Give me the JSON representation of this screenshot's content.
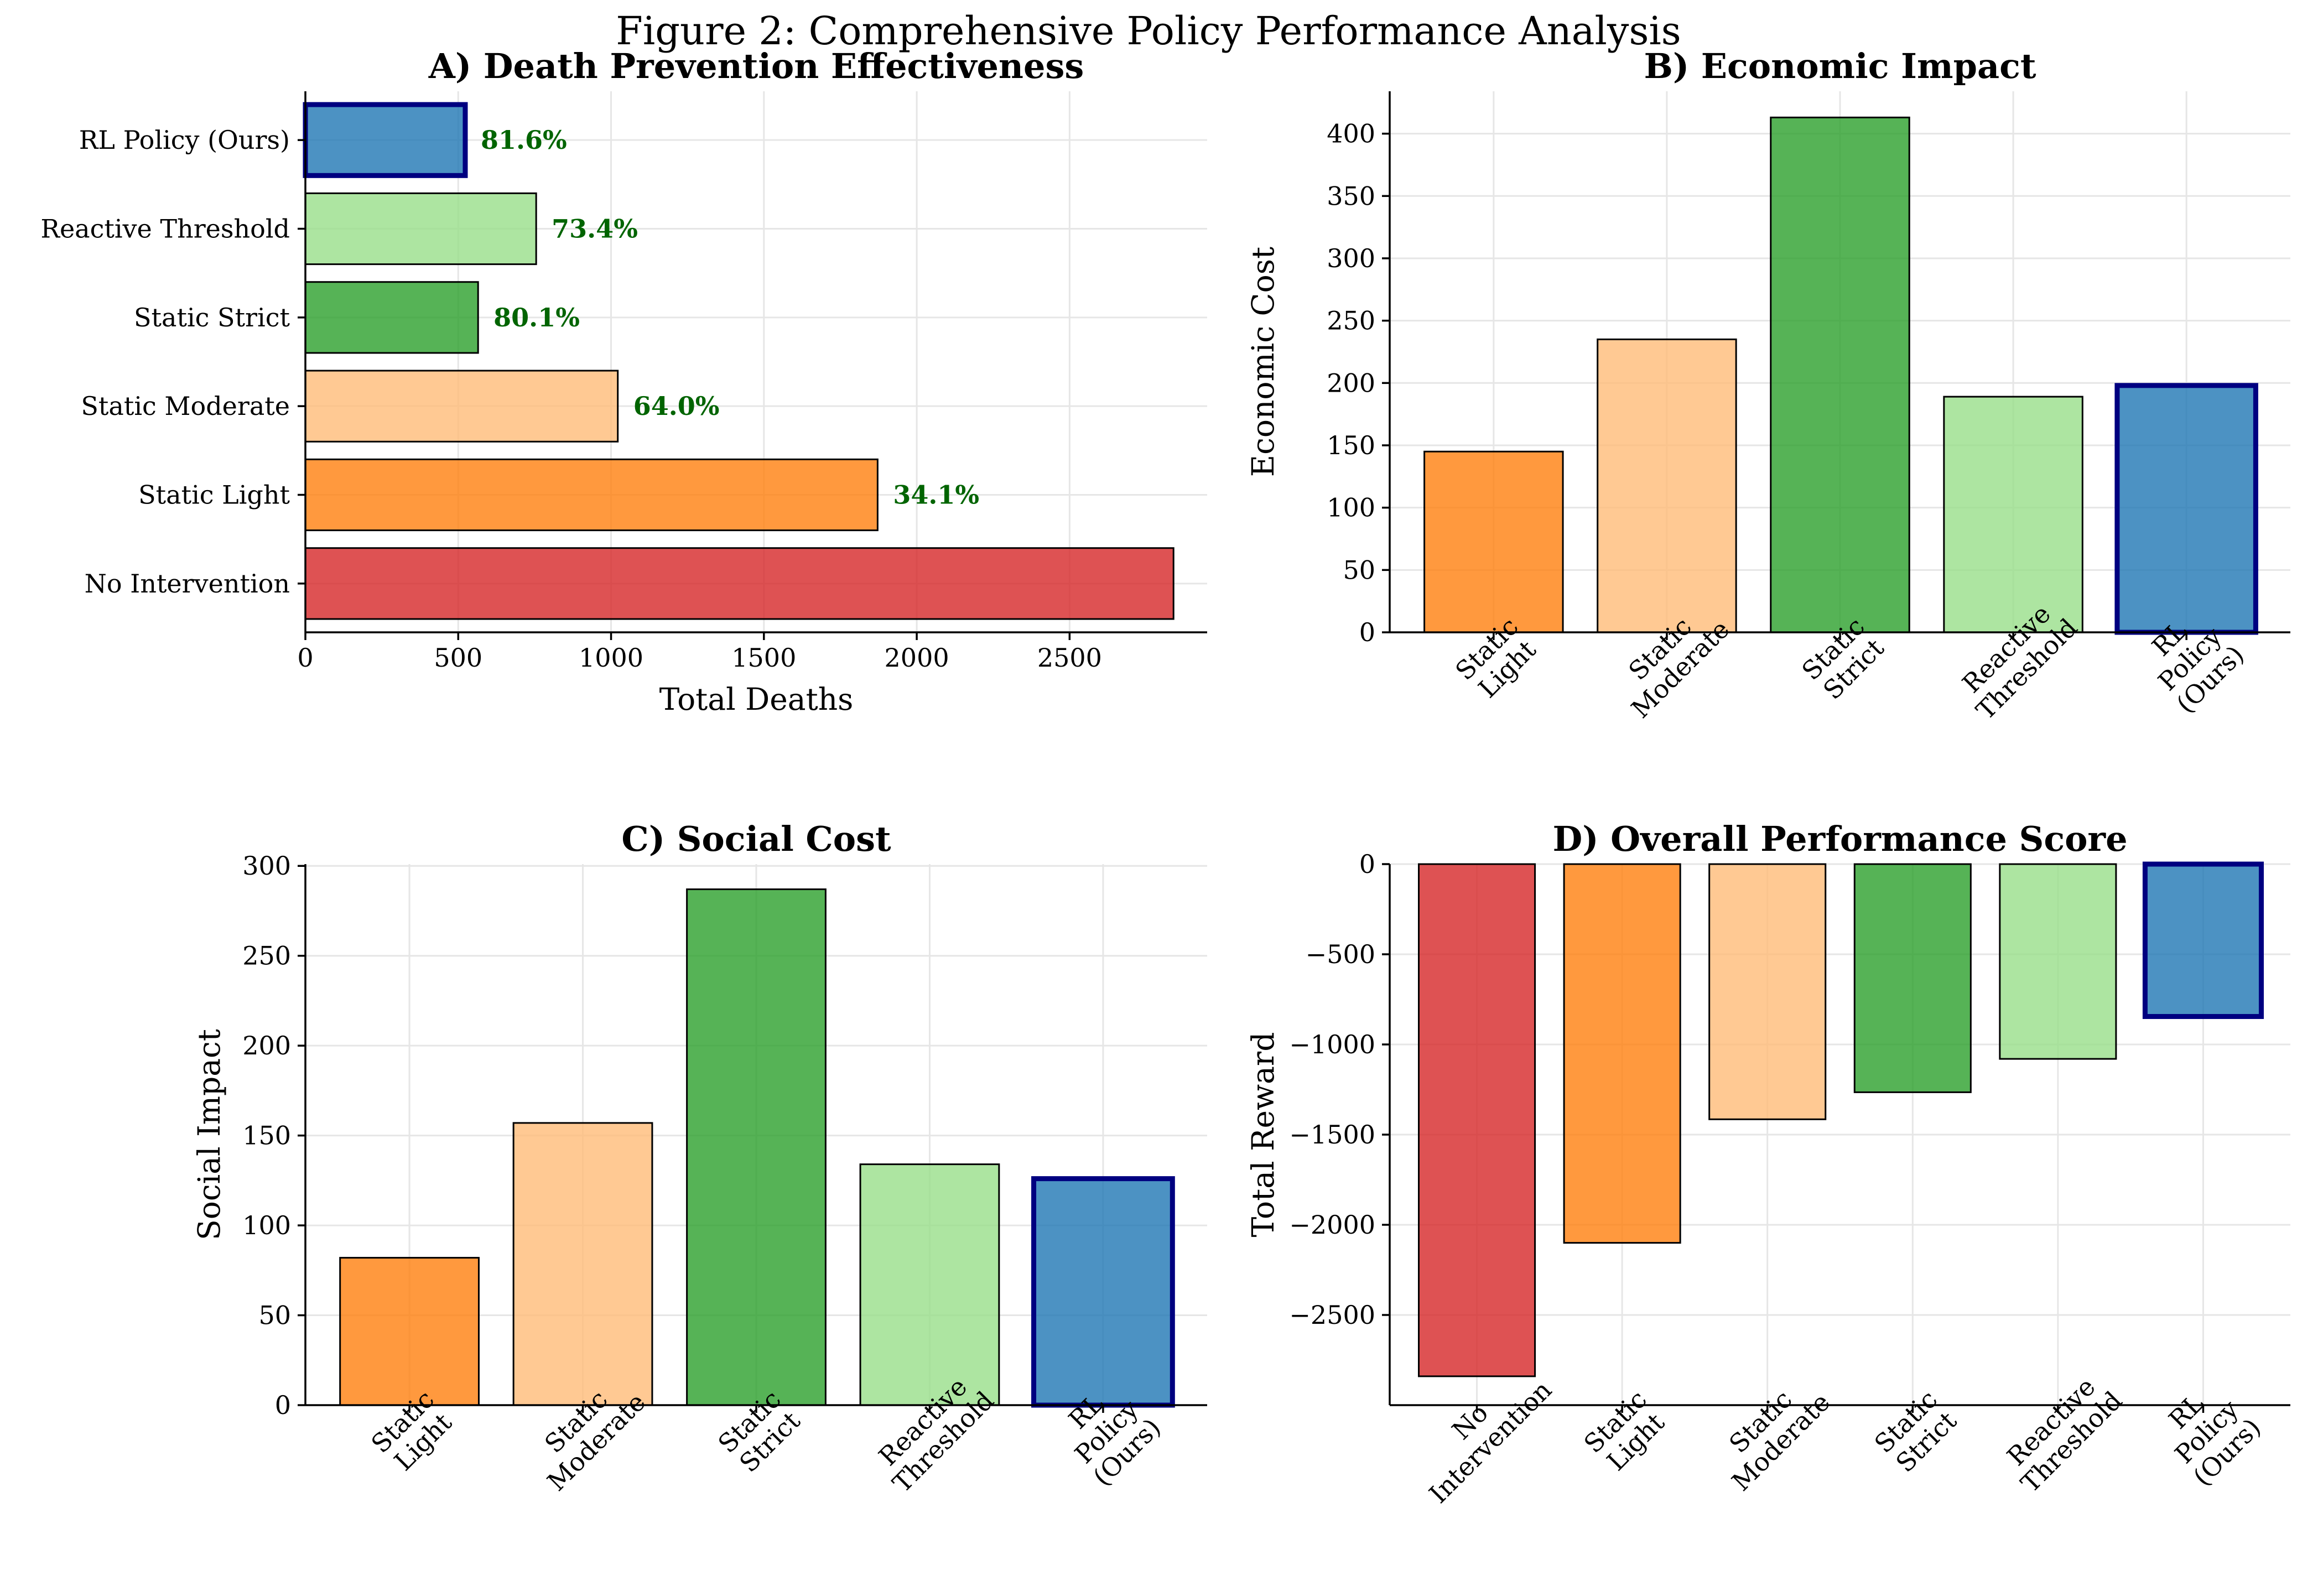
{
  "figure_title": "Figure 2: Comprehensive Policy Performance Analysis",
  "colors": {
    "No Intervention": "#d62728",
    "Static Light": "#ff7f0e",
    "Static Moderate": "#ffbb78",
    "Static Strict": "#2ca02c",
    "Reactive Threshold": "#98df8a",
    "RL Policy (Ours)": "#1f77b4",
    "rl_edge": "#000080",
    "edge": "#000000",
    "percent_label": "#006400"
  },
  "chart_data": [
    {
      "id": "A",
      "type": "bar",
      "orientation": "horizontal",
      "title": "A) Death Prevention Effectiveness",
      "xlabel": "Total Deaths",
      "ylabel": "",
      "xlim": [
        0,
        2950
      ],
      "xticks": [
        0,
        500,
        1000,
        1500,
        2000,
        2500
      ],
      "xtick_labels": [
        "0",
        "500",
        "1000",
        "1500",
        "2000",
        "2500"
      ],
      "categories": [
        "No Intervention",
        "Static Light",
        "Static Moderate",
        "Static Strict",
        "Reactive Threshold",
        "RL Policy (Ours)"
      ],
      "values": [
        2840,
        1872,
        1022,
        565,
        755,
        523
      ],
      "data_labels": [
        "",
        "34.1%",
        "64.0%",
        "80.1%",
        "73.4%",
        "81.6%"
      ],
      "grid": true
    },
    {
      "id": "B",
      "type": "bar",
      "title": "B) Economic Impact",
      "xlabel": "",
      "ylabel": "Economic Cost",
      "ylim": [
        0,
        434
      ],
      "yticks": [
        0,
        50,
        100,
        150,
        200,
        250,
        300,
        350,
        400
      ],
      "ytick_labels": [
        "0",
        "50",
        "100",
        "150",
        "200",
        "250",
        "300",
        "350",
        "400"
      ],
      "categories": [
        "Static Light",
        "Static Moderate",
        "Static Strict",
        "Reactive Threshold",
        "RL Policy (Ours)"
      ],
      "category_tick_labels": [
        [
          "Static",
          "Light"
        ],
        [
          "Static",
          "Moderate"
        ],
        [
          "Static",
          "Strict"
        ],
        [
          "Reactive",
          "Threshold"
        ],
        [
          "RL",
          "Policy",
          "(Ours)"
        ]
      ],
      "values": [
        145,
        235,
        413,
        189,
        198
      ],
      "grid": true
    },
    {
      "id": "C",
      "type": "bar",
      "title": "C) Social Cost",
      "xlabel": "",
      "ylabel": "Social Impact",
      "ylim": [
        0,
        301
      ],
      "yticks": [
        0,
        50,
        100,
        150,
        200,
        250,
        300
      ],
      "ytick_labels": [
        "0",
        "50",
        "100",
        "150",
        "200",
        "250",
        "300"
      ],
      "categories": [
        "Static Light",
        "Static Moderate",
        "Static Strict",
        "Reactive Threshold",
        "RL Policy (Ours)"
      ],
      "category_tick_labels": [
        [
          "Static",
          "Light"
        ],
        [
          "Static",
          "Moderate"
        ],
        [
          "Static",
          "Strict"
        ],
        [
          "Reactive",
          "Threshold"
        ],
        [
          "RL",
          "Policy",
          "(Ours)"
        ]
      ],
      "values": [
        82,
        157,
        287,
        134,
        126
      ],
      "grid": true
    },
    {
      "id": "D",
      "type": "bar",
      "title": "D) Overall Performance Score",
      "xlabel": "",
      "ylabel": "Total Reward",
      "ylim": [
        -3000,
        0
      ],
      "yticks": [
        0,
        -500,
        -1000,
        -1500,
        -2000,
        -2500
      ],
      "ytick_labels": [
        "0",
        "−500",
        "−1000",
        "−1500",
        "−2000",
        "−2500"
      ],
      "categories": [
        "No Intervention",
        "Static Light",
        "Static Moderate",
        "Static Strict",
        "Reactive Threshold",
        "RL Policy (Ours)"
      ],
      "category_tick_labels": [
        [
          "No",
          "Intervention"
        ],
        [
          "Static",
          "Light"
        ],
        [
          "Static",
          "Moderate"
        ],
        [
          "Static",
          "Strict"
        ],
        [
          "Reactive",
          "Threshold"
        ],
        [
          "RL",
          "Policy",
          "(Ours)"
        ]
      ],
      "values": [
        -2840,
        -2100,
        -1415,
        -1265,
        -1080,
        -845
      ],
      "grid": true
    }
  ]
}
